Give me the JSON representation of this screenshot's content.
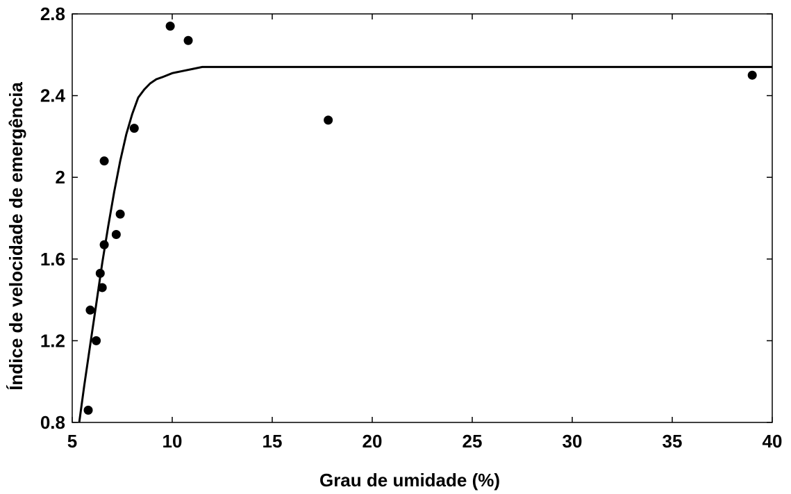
{
  "chart_data": {
    "type": "scatter",
    "xlabel": "Grau de umidade (%)",
    "ylabel": "Índice de velocidade de emergência",
    "xlim": [
      5,
      40
    ],
    "ylim": [
      0.8,
      2.8
    ],
    "x_ticks": [
      5,
      10,
      15,
      20,
      25,
      30,
      35,
      40
    ],
    "x_tick_labels": [
      "5",
      "10",
      "15",
      "20",
      "25",
      "30",
      "35",
      "40"
    ],
    "y_ticks": [
      0.8,
      1.2,
      1.6,
      2.0,
      2.4,
      2.8
    ],
    "y_tick_labels": [
      "0.8",
      "1.2",
      "1.6",
      "2",
      "2.4",
      "2.8"
    ],
    "grid": false,
    "series": [
      {
        "kind": "points",
        "x": [
          5.8,
          5.9,
          6.2,
          6.4,
          6.5,
          6.6,
          6.6,
          7.2,
          7.4,
          8.1,
          9.9,
          10.8,
          17.8,
          39.0
        ],
        "y": [
          0.86,
          1.35,
          1.2,
          1.53,
          1.46,
          1.67,
          2.08,
          1.72,
          1.82,
          2.24,
          2.74,
          2.67,
          2.28,
          2.5
        ]
      },
      {
        "kind": "fitted-line",
        "x": [
          5.35,
          5.6,
          5.9,
          6.2,
          6.5,
          6.8,
          7.1,
          7.4,
          7.7,
          8.0,
          8.3,
          8.6,
          8.9,
          9.2,
          9.5,
          10.0,
          10.5,
          11.0,
          11.5,
          15,
          20,
          25,
          30,
          35,
          40
        ],
        "y": [
          0.8,
          0.98,
          1.18,
          1.38,
          1.58,
          1.76,
          1.93,
          2.08,
          2.21,
          2.31,
          2.39,
          2.43,
          2.46,
          2.48,
          2.49,
          2.51,
          2.52,
          2.53,
          2.54,
          2.54,
          2.54,
          2.54,
          2.54,
          2.54,
          2.54
        ]
      }
    ]
  }
}
